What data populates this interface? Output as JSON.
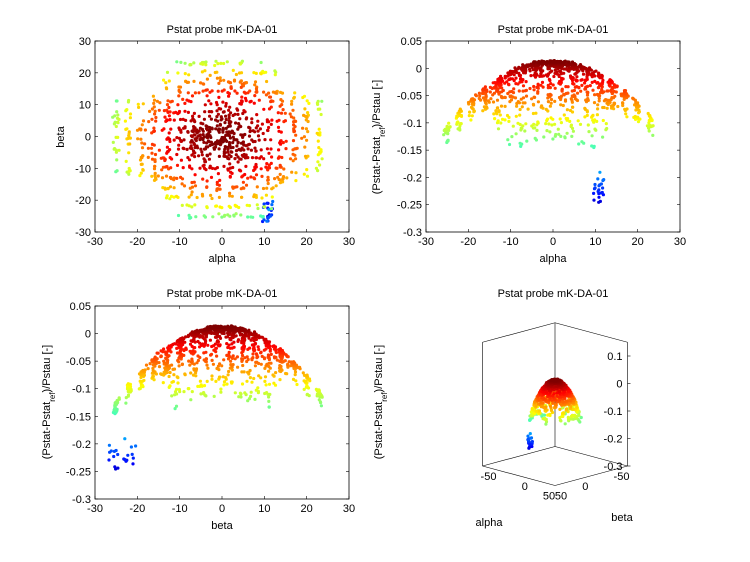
{
  "figure": {
    "window": "MATLAB figure",
    "colormap": "jet"
  },
  "chart_data": [
    {
      "id": "alpha-beta",
      "type": "scatter",
      "title": "Pstat probe mK-DA-01",
      "xlabel": "alpha",
      "ylabel": "beta",
      "xlim": [
        -30,
        30
      ],
      "ylim": [
        -30,
        30
      ],
      "xticks": [
        -30,
        -20,
        -10,
        0,
        10,
        20,
        30
      ],
      "yticks": [
        -30,
        -20,
        -10,
        0,
        10,
        20,
        30
      ],
      "xtick_labels": [
        "-30",
        "-20",
        "-10",
        "0",
        "10",
        "20",
        "30"
      ],
      "ytick_labels": [
        "-30",
        "-20",
        "-10",
        "0",
        "10",
        "20",
        "30"
      ],
      "grid": false,
      "colormap": "jet",
      "color_by": "(Pstat-Pstat_ref)/Pstau"
    },
    {
      "id": "alpha-cp",
      "type": "scatter",
      "title": "Pstat probe mK-DA-01",
      "xlabel": "alpha",
      "ylabel": "(Pstat-Pstat_ref)/Pstau [-]",
      "xlim": [
        -30,
        30
      ],
      "ylim": [
        -0.3,
        0.05
      ],
      "xticks": [
        -30,
        -20,
        -10,
        0,
        10,
        20,
        30
      ],
      "yticks": [
        -0.3,
        -0.25,
        -0.2,
        -0.15,
        -0.1,
        -0.05,
        0,
        0.05
      ],
      "xtick_labels": [
        "-30",
        "-20",
        "-10",
        "0",
        "10",
        "20",
        "30"
      ],
      "ytick_labels": [
        "-0.3",
        "-0.25",
        "-0.2",
        "-0.15",
        "-0.1",
        "-0.05",
        "0",
        "0.05"
      ],
      "grid": false,
      "colormap": "jet",
      "trend": "cp ≈ 0.012 - 0.00022·alpha²"
    },
    {
      "id": "beta-cp",
      "type": "scatter",
      "title": "Pstat probe mK-DA-01",
      "xlabel": "beta",
      "ylabel": "(Pstat-Pstat_ref)/Pstau [-]",
      "xlim": [
        -30,
        30
      ],
      "ylim": [
        -0.3,
        0.05
      ],
      "xticks": [
        -30,
        -20,
        -10,
        0,
        10,
        20,
        30
      ],
      "yticks": [
        -0.3,
        -0.25,
        -0.2,
        -0.15,
        -0.1,
        -0.05,
        0,
        0.05
      ],
      "xtick_labels": [
        "-30",
        "-20",
        "-10",
        "0",
        "10",
        "20",
        "30"
      ],
      "ytick_labels": [
        "-0.3",
        "-0.25",
        "-0.2",
        "-0.15",
        "-0.1",
        "-0.05",
        "0",
        "0.05"
      ],
      "grid": false,
      "colormap": "jet",
      "trend": "cp ≈ 0.012 - 0.00025·beta²"
    },
    {
      "id": "3d",
      "type": "scatter3d",
      "title": "Pstat probe mK-DA-01",
      "xlabel": "alpha",
      "ylabel": "beta",
      "zlabel": "(Pstat-Pstat_ref)/Pstau [-]",
      "xlim": [
        -50,
        50
      ],
      "ylim": [
        -50,
        50
      ],
      "zlim": [
        -0.3,
        0.15
      ],
      "xticks": [
        -50,
        0,
        50
      ],
      "yticks": [
        -50,
        0,
        50
      ],
      "zticks": [
        -0.3,
        -0.2,
        -0.1,
        0,
        0.1
      ],
      "xtick_labels": [
        "-50",
        "0",
        "50"
      ],
      "ytick_labels": [
        "-50",
        "0",
        "50"
      ],
      "ztick_labels": [
        "-0.3",
        "-0.2",
        "-0.1",
        "0",
        "0.1"
      ],
      "grid": false,
      "colormap": "jet"
    }
  ]
}
